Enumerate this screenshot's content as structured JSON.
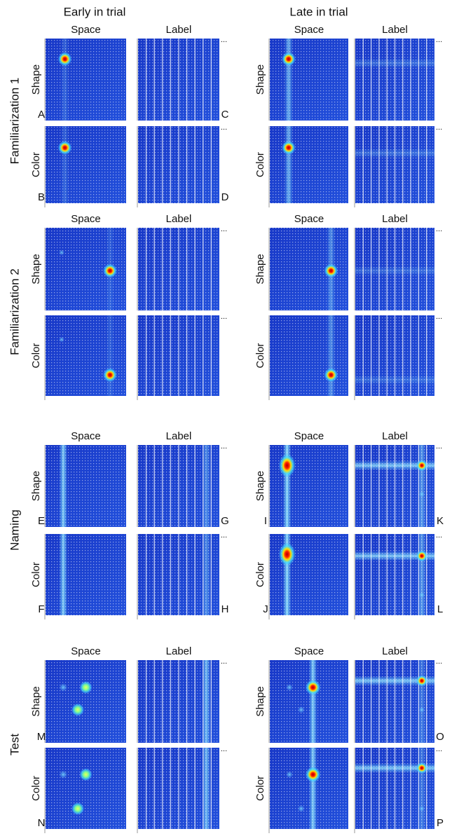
{
  "columns": [
    "Early in trial",
    "Late in trial"
  ],
  "more_marker": "...",
  "sections": [
    {
      "title": "Familiarization 1",
      "rows": [
        "Shape",
        "Color"
      ],
      "panel_headers": [
        "Space",
        "Label",
        "Space",
        "Label"
      ],
      "letters": {
        "early_space": [
          "A",
          "B"
        ],
        "early_label": [
          "C",
          "D"
        ]
      }
    },
    {
      "title": "Familiarization 2",
      "rows": [
        "Shape",
        "Color"
      ],
      "panel_headers": [
        "Space",
        "Label",
        "Space",
        "Label"
      ]
    },
    {
      "title": "Naming",
      "rows": [
        "Shape",
        "Color"
      ],
      "panel_headers": [
        "Space",
        "Label",
        "Space",
        "Label"
      ],
      "letters": {
        "early_space": [
          "E",
          "F"
        ],
        "early_label": [
          "G",
          "H"
        ],
        "late_space": [
          "I",
          "J"
        ],
        "late_label": [
          "K",
          "L"
        ]
      }
    },
    {
      "title": "Test",
      "rows": [
        "Shape",
        "Color"
      ],
      "panel_headers": [
        "Space",
        "Label",
        "Space",
        "Label"
      ],
      "letters": {
        "early_space": [
          "M",
          "N"
        ],
        "late_label": [
          "O",
          "P"
        ]
      }
    }
  ]
}
